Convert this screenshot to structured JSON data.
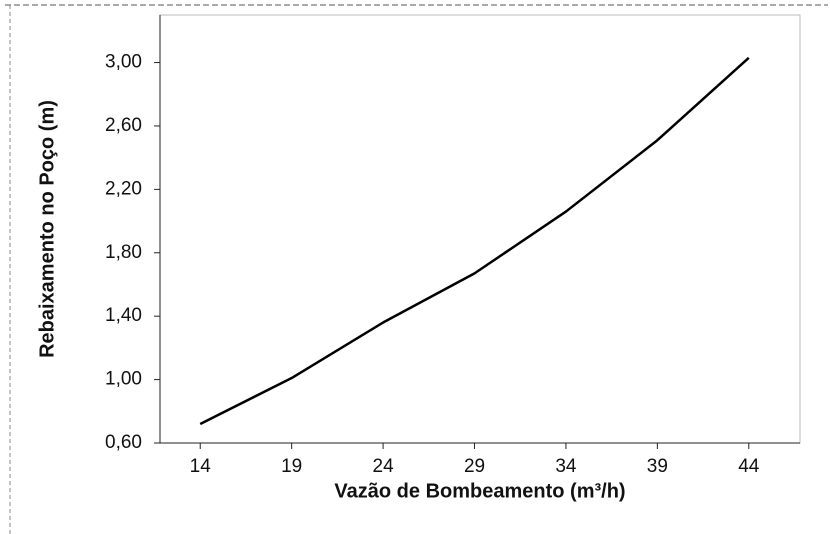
{
  "chart_data": {
    "type": "line",
    "xlabel": "Vazão de Bombeamento (m³/h)",
    "ylabel": "Rebaixamento no Poço (m)",
    "x": [
      14,
      19,
      24,
      29,
      34,
      39,
      44
    ],
    "series": [
      {
        "color": "#000000",
        "values": [
          0.72,
          1.01,
          1.36,
          1.67,
          2.06,
          2.51,
          3.03
        ]
      }
    ],
    "xlim": [
      11.8,
      46.8
    ],
    "xticks": [
      14,
      19,
      24,
      29,
      34,
      39,
      44
    ],
    "ylim": [
      0.6,
      3.3
    ],
    "yticks": [
      {
        "value": 0.6,
        "label": "0,60"
      },
      {
        "value": 1.0,
        "label": "1,00"
      },
      {
        "value": 1.4,
        "label": "1,40"
      },
      {
        "value": 1.8,
        "label": "1,80"
      },
      {
        "value": 2.2,
        "label": "2,20"
      },
      {
        "value": 2.6,
        "label": "2,60"
      },
      {
        "value": 3.0,
        "label": "3,00"
      }
    ]
  }
}
